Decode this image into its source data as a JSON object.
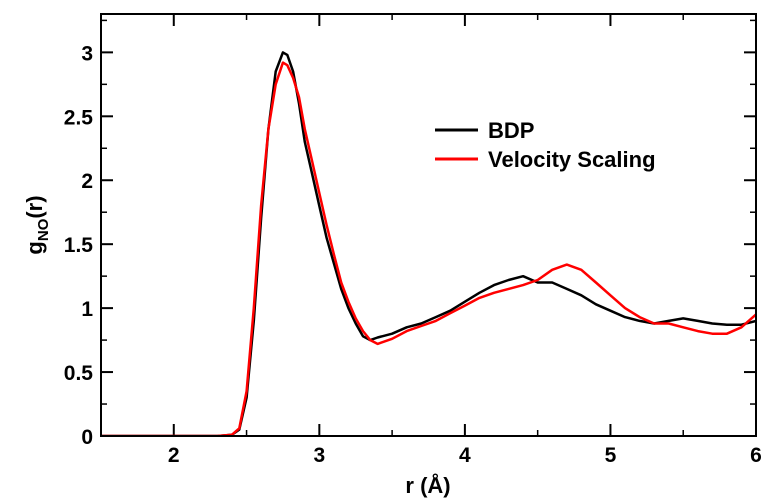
{
  "chart_data": {
    "type": "line",
    "xlabel": "r (Å)",
    "ylabel_main": "g",
    "ylabel_sub": "NO",
    "ylabel_tail": "(r)",
    "xlim": [
      1.5,
      6
    ],
    "ylim": [
      0,
      3.3
    ],
    "x_ticks": [
      2,
      3,
      4,
      5,
      6
    ],
    "y_ticks": [
      0,
      0.5,
      1,
      1.5,
      2,
      2.5,
      3
    ],
    "x_tick_labels": [
      "2",
      "3",
      "4",
      "5",
      "6"
    ],
    "y_tick_labels": [
      "0",
      "0.5",
      "1",
      "1.5",
      "2",
      "2.5",
      "3"
    ],
    "grid": false,
    "legend_position": "top-right",
    "series": [
      {
        "name": "BDP",
        "color": "#000000",
        "x": [
          1.5,
          2.3,
          2.4,
          2.45,
          2.5,
          2.55,
          2.6,
          2.65,
          2.7,
          2.75,
          2.78,
          2.82,
          2.86,
          2.9,
          2.95,
          3.0,
          3.05,
          3.1,
          3.15,
          3.2,
          3.25,
          3.3,
          3.35,
          3.4,
          3.5,
          3.6,
          3.7,
          3.8,
          3.9,
          4.0,
          4.1,
          4.2,
          4.3,
          4.4,
          4.5,
          4.6,
          4.7,
          4.8,
          4.9,
          5.0,
          5.1,
          5.2,
          5.3,
          5.4,
          5.5,
          5.6,
          5.7,
          5.8,
          5.9,
          6.0
        ],
        "y": [
          0.0,
          0.0,
          0.01,
          0.05,
          0.3,
          0.9,
          1.7,
          2.4,
          2.85,
          3.0,
          2.98,
          2.85,
          2.6,
          2.3,
          2.05,
          1.8,
          1.55,
          1.35,
          1.15,
          1.0,
          0.88,
          0.78,
          0.75,
          0.77,
          0.8,
          0.85,
          0.88,
          0.93,
          0.98,
          1.05,
          1.12,
          1.18,
          1.22,
          1.25,
          1.2,
          1.2,
          1.15,
          1.1,
          1.03,
          0.98,
          0.93,
          0.9,
          0.88,
          0.9,
          0.92,
          0.9,
          0.88,
          0.87,
          0.87,
          0.9
        ]
      },
      {
        "name": "Velocity Scaling",
        "color": "#ff0000",
        "x": [
          1.5,
          2.3,
          2.4,
          2.45,
          2.5,
          2.55,
          2.6,
          2.65,
          2.7,
          2.75,
          2.78,
          2.82,
          2.86,
          2.9,
          2.95,
          3.0,
          3.05,
          3.1,
          3.15,
          3.2,
          3.25,
          3.3,
          3.35,
          3.4,
          3.5,
          3.6,
          3.7,
          3.8,
          3.9,
          4.0,
          4.1,
          4.2,
          4.3,
          4.4,
          4.5,
          4.6,
          4.7,
          4.8,
          4.9,
          5.0,
          5.1,
          5.2,
          5.3,
          5.4,
          5.5,
          5.6,
          5.7,
          5.8,
          5.9,
          6.0
        ],
        "y": [
          0.0,
          0.0,
          0.01,
          0.06,
          0.35,
          1.0,
          1.8,
          2.4,
          2.75,
          2.92,
          2.9,
          2.8,
          2.65,
          2.4,
          2.15,
          1.9,
          1.65,
          1.42,
          1.2,
          1.05,
          0.92,
          0.82,
          0.75,
          0.72,
          0.76,
          0.82,
          0.86,
          0.9,
          0.96,
          1.02,
          1.08,
          1.12,
          1.15,
          1.18,
          1.22,
          1.3,
          1.34,
          1.3,
          1.2,
          1.1,
          1.0,
          0.93,
          0.88,
          0.88,
          0.85,
          0.82,
          0.8,
          0.8,
          0.85,
          0.95
        ]
      }
    ]
  }
}
